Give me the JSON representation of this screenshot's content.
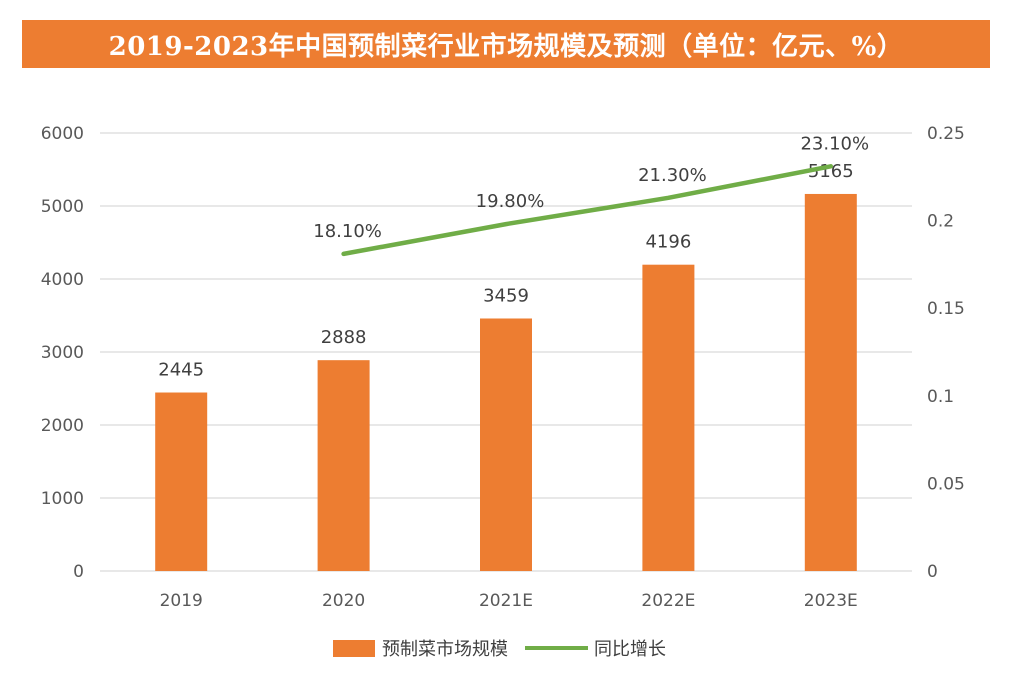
{
  "title": "2019-2023年中国预制菜行业市场规模及预测（单位：亿元、%）",
  "chart_data": {
    "type": "bar+line",
    "categories": [
      "2019",
      "2020",
      "2021E",
      "2022E",
      "2023E"
    ],
    "bar_series": {
      "name": "预制菜市场规模",
      "values": [
        2445,
        2888,
        3459,
        4196,
        5165
      ],
      "labels": [
        "2445",
        "2888",
        "3459",
        "4196",
        "5165"
      ],
      "color": "#ED7D31"
    },
    "line_series": {
      "name": "同比增长",
      "values": [
        null,
        0.181,
        0.198,
        0.213,
        0.231
      ],
      "labels": [
        "",
        "18.10%",
        "19.80%",
        "21.30%",
        "23.10%"
      ],
      "color": "#70AD47"
    },
    "y_left": {
      "min": 0,
      "max": 6000,
      "ticks": [
        "0",
        "1000",
        "2000",
        "3000",
        "4000",
        "5000",
        "6000"
      ]
    },
    "y_right": {
      "min": 0,
      "max": 0.25,
      "ticks": [
        "0",
        "0.05",
        "0.1",
        "0.15",
        "0.2",
        "0.25"
      ]
    },
    "grid": true,
    "legend": "bottom"
  }
}
